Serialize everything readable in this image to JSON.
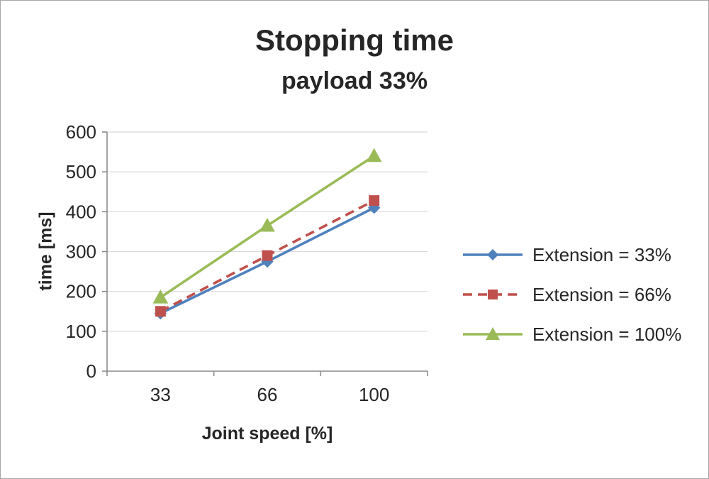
{
  "chart_data": {
    "type": "line",
    "title": "Stopping time",
    "subtitle": "payload 33%",
    "xlabel": "Joint speed [%]",
    "ylabel": "time [ms]",
    "categories": [
      "33",
      "66",
      "100"
    ],
    "ylim": [
      0,
      600
    ],
    "ytick_step": 100,
    "grid": true,
    "legend_position": "right",
    "series": [
      {
        "name": "Extension = 33%",
        "values": [
          145,
          275,
          410
        ],
        "color": "#4f81bd",
        "dash": "solid",
        "marker": "diamond"
      },
      {
        "name": "Extension = 66%",
        "values": [
          150,
          290,
          428
        ],
        "color": "#c0504d",
        "dash": "dashed",
        "marker": "square"
      },
      {
        "name": "Extension = 100%",
        "values": [
          185,
          365,
          540
        ],
        "color": "#9bbb59",
        "dash": "solid",
        "marker": "triangle"
      }
    ],
    "style": {
      "grid_color": "#d9d9d9",
      "axis_color": "#8c8c8c",
      "text_color": "#262626",
      "background": "#ffffff"
    }
  }
}
